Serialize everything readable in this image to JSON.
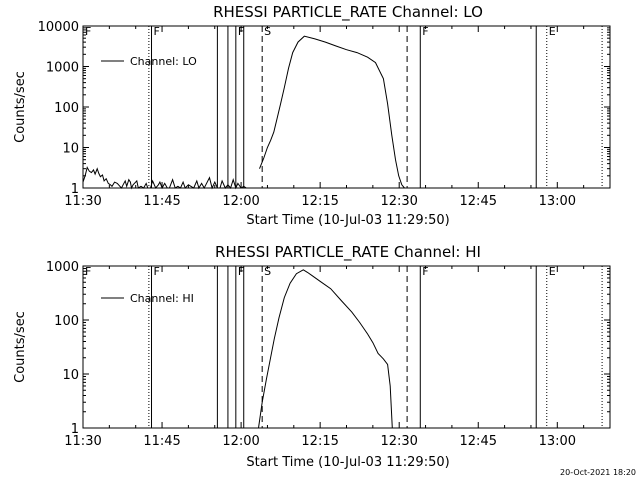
{
  "chart_data": [
    {
      "type": "line",
      "title": "RHESSI PARTICLE_RATE Channel: LO",
      "xlabel": "Start Time (10-Jul-03 11:29:50)",
      "ylabel": "Counts/sec",
      "yscale": "log",
      "ylim": [
        1,
        10000
      ],
      "xlim_minutes": [
        0,
        100
      ],
      "x_ticks": [
        "11:30",
        "11:45",
        "12:00",
        "12:15",
        "12:30",
        "12:45",
        "13:00"
      ],
      "y_ticks": [
        "1",
        "10",
        "100",
        "1000",
        "10000"
      ],
      "legend": "Channel: LO",
      "legend_position": "top-left",
      "series": [
        {
          "x_minutes": [
            0,
            0.4,
            0.8,
            1.2,
            1.6,
            2.0,
            2.3,
            2.7,
            3.0,
            3.3,
            3.7,
            4.0,
            4.4,
            4.8,
            5.2,
            5.5,
            6.0,
            6.5,
            7.0,
            7.3,
            7.6,
            8.0,
            8.3,
            8.7,
            9.0,
            9.2,
            9.5,
            10.2,
            10.5,
            11.0,
            11.5,
            12.0,
            12.3,
            12.8,
            13.2,
            13.8,
            14.3,
            14.6,
            15.0,
            15.5,
            16.0,
            16.4,
            17.0,
            17.5,
            18.0,
            18.5,
            19.0,
            19.4,
            20.0,
            21.0,
            21.6,
            22.0,
            22.5,
            23.0,
            24.0,
            24.5,
            25.0,
            25.5,
            26.0,
            26.4,
            27.0,
            27.5,
            28.0,
            28.5,
            29.0,
            29.4,
            30.0,
            30.5,
            31.0
          ],
          "values": [
            1.4,
            2.0,
            3.2,
            2.6,
            2.4,
            2.8,
            2.2,
            3.0,
            2.3,
            1.9,
            2.1,
            1.5,
            1.7,
            1.3,
            1.2,
            1.1,
            1.4,
            1.3,
            1.1,
            1.0,
            1.2,
            1.5,
            1.1,
            1.6,
            1.4,
            1.0,
            1.2,
            1.5,
            1.0,
            1.1,
            1.0,
            1.3,
            1.0,
            1.0,
            1.5,
            1.0,
            1.2,
            1.4,
            1.0,
            1.3,
            1.0,
            1.0,
            1.6,
            1.0,
            1.1,
            1.0,
            1.4,
            1.0,
            1.2,
            1.0,
            1.5,
            1.0,
            1.3,
            1.0,
            1.8,
            1.0,
            1.4,
            1.0,
            1.0,
            1.5,
            1.0,
            1.2,
            1.0,
            1.6,
            1.0,
            1.3,
            1.0,
            1.1,
            1.0
          ]
        },
        {
          "x_minutes": [
            33.5,
            34.3,
            35.0,
            35.6,
            36.2,
            36.8,
            37.5,
            38.2,
            39.0,
            39.8,
            40.8,
            42.0,
            44.0,
            46.0,
            48.0,
            50.0,
            52.0,
            54.0,
            55.5,
            57.0,
            57.8,
            58.6,
            59.3,
            59.9,
            60.5,
            61.0
          ],
          "values": [
            3.0,
            5.5,
            10,
            15,
            24,
            50,
            120,
            300,
            900,
            2200,
            4000,
            5600,
            4800,
            4000,
            3200,
            2600,
            2200,
            1700,
            1250,
            500,
            120,
            20,
            5,
            2,
            1.2,
            1.0
          ]
        }
      ],
      "markers": [
        {
          "label": "F",
          "type": "dotted",
          "x_minutes": 0
        },
        {
          "label": "",
          "type": "dotted",
          "x_minutes": 12.5
        },
        {
          "label": "F",
          "type": "solid",
          "x_minutes": 13.0
        },
        {
          "label": "",
          "type": "solid",
          "x_minutes": 25.5
        },
        {
          "label": "",
          "type": "solid",
          "x_minutes": 27.5
        },
        {
          "label": "F",
          "type": "solid",
          "x_minutes": 29.0
        },
        {
          "label": "",
          "type": "solid",
          "x_minutes": 30.5
        },
        {
          "label": "S",
          "type": "dashed",
          "x_minutes": 34.0
        },
        {
          "label": "",
          "type": "dashed",
          "x_minutes": 61.5
        },
        {
          "label": "F",
          "type": "solid",
          "x_minutes": 64.0
        },
        {
          "label": "",
          "type": "solid",
          "x_minutes": 86.0
        },
        {
          "label": "E",
          "type": "dotted",
          "x_minutes": 88.0
        },
        {
          "label": "",
          "type": "dotted",
          "x_minutes": 98.5
        }
      ]
    },
    {
      "type": "line",
      "title": "RHESSI PARTICLE_RATE Channel: HI",
      "xlabel": "Start Time (10-Jul-03 11:29:50)",
      "ylabel": "Counts/sec",
      "yscale": "log",
      "ylim": [
        1,
        1000
      ],
      "xlim_minutes": [
        0,
        100
      ],
      "x_ticks": [
        "11:30",
        "11:45",
        "12:00",
        "12:15",
        "12:30",
        "12:45",
        "13:00"
      ],
      "y_ticks": [
        "1",
        "10",
        "100",
        "1000"
      ],
      "legend": "Channel: HI",
      "legend_position": "top-left",
      "series": [
        {
          "x_minutes": [
            33.3,
            34.0,
            34.8,
            35.5,
            36.3,
            37.2,
            38.2,
            39.3,
            40.5,
            41.8,
            42.6,
            43.5,
            45.0,
            47.0,
            49.0,
            51.0,
            52.5,
            54.0,
            55.0,
            56.0,
            57.0,
            57.8,
            58.3,
            58.7
          ],
          "values": [
            1.0,
            3.0,
            8.0,
            18,
            45,
            110,
            260,
            480,
            720,
            850,
            760,
            660,
            520,
            380,
            230,
            140,
            90,
            55,
            38,
            24,
            19,
            15,
            6,
            1.0
          ]
        }
      ],
      "markers": [
        {
          "label": "F",
          "type": "dotted",
          "x_minutes": 0
        },
        {
          "label": "",
          "type": "dotted",
          "x_minutes": 12.5
        },
        {
          "label": "F",
          "type": "solid",
          "x_minutes": 13.0
        },
        {
          "label": "",
          "type": "solid",
          "x_minutes": 25.5
        },
        {
          "label": "",
          "type": "solid",
          "x_minutes": 27.5
        },
        {
          "label": "F",
          "type": "solid",
          "x_minutes": 29.0
        },
        {
          "label": "",
          "type": "solid",
          "x_minutes": 30.5
        },
        {
          "label": "S",
          "type": "dashed",
          "x_minutes": 34.0
        },
        {
          "label": "",
          "type": "dashed",
          "x_minutes": 61.5
        },
        {
          "label": "F",
          "type": "solid",
          "x_minutes": 64.0
        },
        {
          "label": "",
          "type": "solid",
          "x_minutes": 86.0
        },
        {
          "label": "E",
          "type": "dotted",
          "x_minutes": 88.0
        },
        {
          "label": "",
          "type": "dotted",
          "x_minutes": 98.5
        }
      ]
    }
  ],
  "footer": {
    "timestamp": "20-Oct-2021 18:20"
  }
}
